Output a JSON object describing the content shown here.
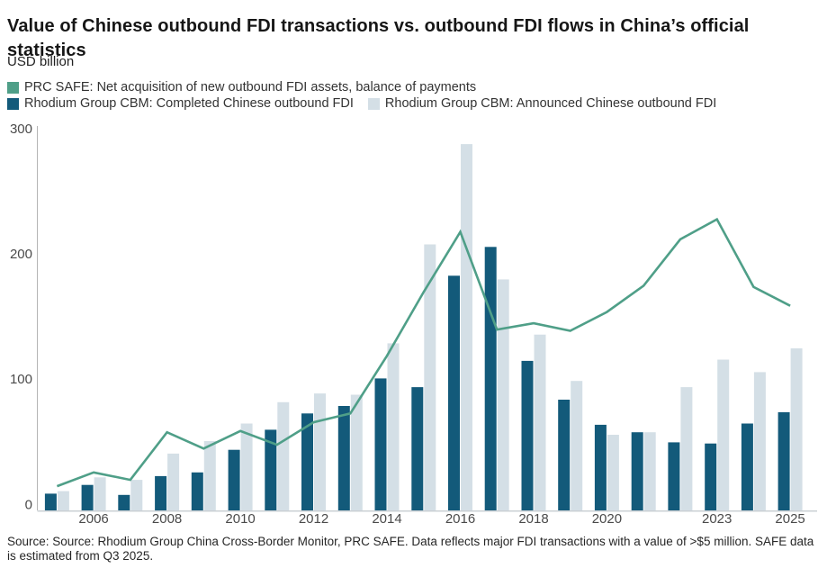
{
  "title": "Value of Chinese outbound FDI transactions vs. outbound FDI flows in China’s official statistics",
  "subtitle": "USD billion",
  "source_note": "Source: Source: Rhodium Group China Cross-Border Monitor, PRC SAFE. Data reflects major FDI transactions with a value of >$5 million. SAFE data is estimated from Q3 2025.",
  "chart_data": {
    "type": "combo",
    "x": [
      2005,
      2006,
      2007,
      2008,
      2009,
      2010,
      2011,
      2012,
      2013,
      2014,
      2015,
      2016,
      2017,
      2018,
      2019,
      2020,
      2021,
      2022,
      2023,
      2024,
      2025
    ],
    "x_tick_labels": [
      "2006",
      "2008",
      "2010",
      "2012",
      "2014",
      "2016",
      "2018",
      "2020",
      "2023",
      "2025"
    ],
    "y_ticks": [
      0,
      100,
      200,
      300
    ],
    "ylim": [
      0,
      300
    ],
    "grid": false,
    "legend_position": "top-left",
    "axis_text_color": "#4a4a4a",
    "series": [
      {
        "name": "PRC SAFE: Net acquisition of new outbound FDI assets, balance of payments",
        "type": "line",
        "color": "#4f9f88",
        "values": [
          19,
          30,
          24,
          62,
          49,
          63,
          52,
          70,
          77,
          123,
          174,
          222,
          144,
          149,
          143,
          158,
          179,
          216,
          232,
          178,
          163
        ]
      },
      {
        "name": "Rhodium Group CBM: Completed Chinese outbound FDI",
        "type": "bar",
        "color": "#135a7a",
        "values": [
          13,
          20,
          12,
          27,
          30,
          48,
          64,
          77,
          83,
          105,
          98,
          187,
          210,
          119,
          88,
          68,
          62,
          54,
          53,
          69,
          78
        ]
      },
      {
        "name": "Rhodium Group CBM: Announced Chinese outbound FDI",
        "type": "bar",
        "color": "#d4dfe6",
        "values": [
          15,
          26,
          24,
          45,
          55,
          69,
          86,
          93,
          92,
          133,
          212,
          292,
          184,
          140,
          103,
          60,
          62,
          98,
          120,
          110,
          129
        ]
      }
    ]
  }
}
